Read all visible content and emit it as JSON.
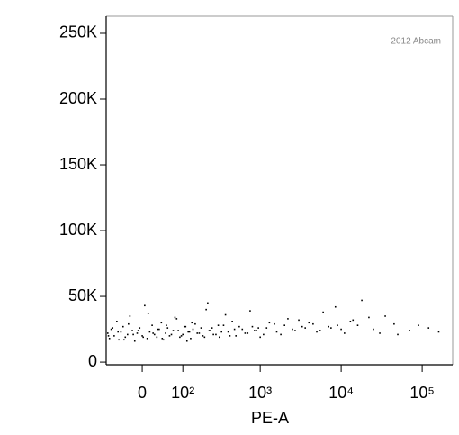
{
  "chart_data": {
    "type": "scatter",
    "annotation": "2012 Abcam",
    "x_label": "PE-A",
    "xscale": "biexponential",
    "color": "#000000",
    "xlim": [
      -85,
      238000
    ],
    "xticks": [
      0,
      {
        "value": 100,
        "label": "10²"
      },
      {
        "value": 1000,
        "label": "10³"
      },
      {
        "value": 10000,
        "label": "10⁴"
      },
      {
        "value": 100000,
        "label": "10⁵"
      }
    ],
    "ylim": [
      -2000,
      263000
    ],
    "yticks": [
      0,
      {
        "value": 50000,
        "label": "50K"
      },
      {
        "value": 100000,
        "label": "100K"
      },
      {
        "value": 150000,
        "label": "150K"
      },
      {
        "value": 200000,
        "label": "200K"
      },
      {
        "value": 250000,
        "label": "250K"
      }
    ],
    "x": [
      -80,
      -75,
      -70,
      -62,
      -55,
      -50,
      -45,
      -40,
      -35,
      -30,
      -25,
      -20,
      -15,
      -10,
      -5,
      0,
      5,
      10,
      15,
      20,
      25,
      30,
      35,
      40,
      45,
      50,
      55,
      60,
      70,
      80,
      90,
      100,
      110,
      120,
      130,
      140,
      150,
      170,
      190,
      210,
      230,
      250,
      280,
      310,
      350,
      400,
      450,
      500,
      600,
      700,
      800,
      900,
      1000,
      1200,
      1500,
      1800,
      2200,
      2700,
      3300,
      4000,
      5000,
      6000,
      7500,
      9000,
      11000,
      14000,
      18000,
      25000,
      35000,
      50000,
      90000,
      160000,
      -78,
      -66,
      -52,
      -38,
      -28,
      -18,
      -8,
      2,
      12,
      22,
      32,
      42,
      52,
      65,
      75,
      85,
      95,
      105,
      115,
      125,
      135,
      160,
      180,
      200,
      220,
      240,
      260,
      300,
      330,
      370,
      420,
      480,
      550,
      650,
      750,
      850,
      950,
      1100,
      1300,
      1600,
      2000,
      2500,
      3000,
      3600,
      4500,
      5500,
      7000,
      8500,
      10000,
      13000,
      16000,
      22000,
      30000,
      45000,
      70000,
      120000
    ],
    "values": [
      22000,
      18000,
      25000,
      20000,
      31000,
      17000,
      23000,
      27000,
      19000,
      21000,
      35000,
      24000,
      16000,
      22000,
      26000,
      20000,
      43000,
      18000,
      23000,
      28000,
      21000,
      19000,
      25000,
      30000,
      17000,
      22000,
      26000,
      20000,
      24000,
      33000,
      19000,
      21000,
      27000,
      23000,
      18000,
      25000,
      29000,
      22000,
      20000,
      40000,
      24000,
      26000,
      21000,
      19000,
      28000,
      23000,
      31000,
      20000,
      25000,
      22000,
      27000,
      24000,
      19000,
      26000,
      29000,
      21000,
      33000,
      24000,
      27000,
      30000,
      23000,
      38000,
      26000,
      28000,
      22000,
      32000,
      47000,
      25000,
      35000,
      21000,
      28000,
      23000,
      20000,
      26000,
      23000,
      17000,
      29000,
      21000,
      24000,
      19000,
      37000,
      22000,
      25000,
      18000,
      28000,
      21000,
      34000,
      24000,
      20000,
      27000,
      16000,
      23000,
      30000,
      22000,
      26000,
      19000,
      45000,
      24000,
      21000,
      28000,
      23000,
      36000,
      20000,
      25000,
      27000,
      22000,
      39000,
      24000,
      26000,
      21000,
      30000,
      23000,
      28000,
      25000,
      32000,
      26000,
      29000,
      24000,
      27000,
      42000,
      25000,
      31000,
      28000,
      34000,
      22000,
      29000,
      24000,
      26000
    ]
  }
}
